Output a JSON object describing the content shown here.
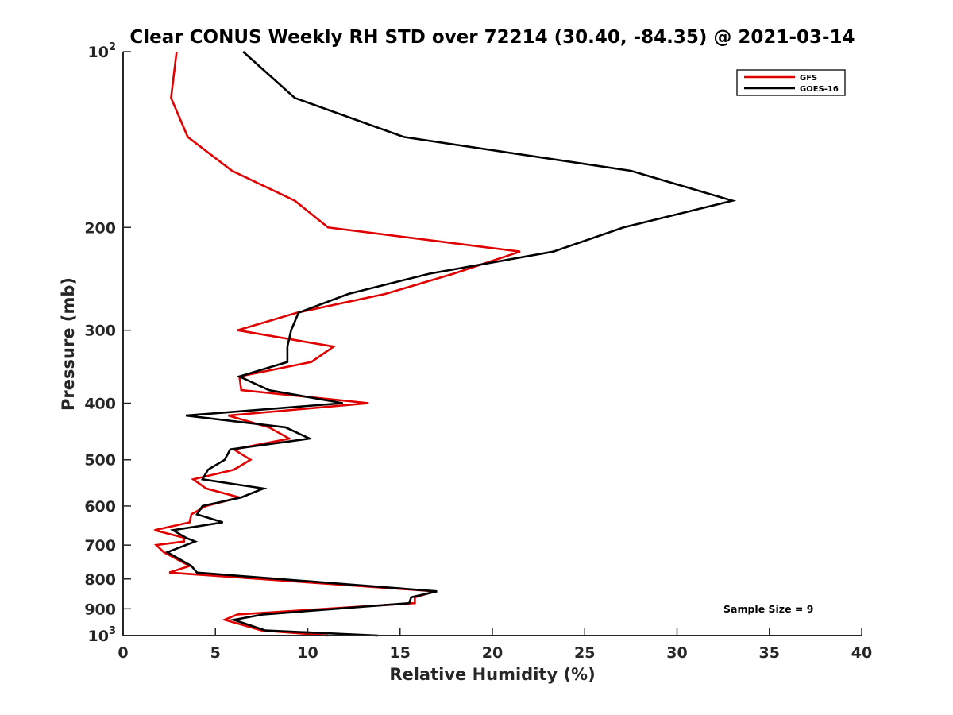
{
  "chart_data": {
    "type": "line",
    "title": "Clear CONUS Weekly RH STD over 72214 (30.40, -84.35) @ 2021-03-14",
    "xlabel": "Relative Humidity (%)",
    "ylabel": "Pressure (mb)",
    "xlim": [
      0,
      40
    ],
    "ylim": [
      100,
      1000
    ],
    "yscale": "log",
    "yreversed": true,
    "grid": false,
    "x_ticks": [
      0,
      5,
      10,
      15,
      20,
      25,
      30,
      35,
      40
    ],
    "x_tick_labels": [
      "0",
      "5",
      "10",
      "15",
      "20",
      "25",
      "30",
      "35",
      "40"
    ],
    "y_ticks": [
      100,
      200,
      300,
      400,
      500,
      600,
      700,
      800,
      900,
      1000
    ],
    "y_tick_labels": [
      {
        "base": "10",
        "exp": "2"
      },
      {
        "base": "200",
        "exp": ""
      },
      {
        "base": "300",
        "exp": ""
      },
      {
        "base": "400",
        "exp": ""
      },
      {
        "base": "500",
        "exp": ""
      },
      {
        "base": "600",
        "exp": ""
      },
      {
        "base": "700",
        "exp": ""
      },
      {
        "base": "800",
        "exp": ""
      },
      {
        "base": "900",
        "exp": ""
      },
      {
        "base": "10",
        "exp": "3"
      }
    ],
    "legend": {
      "position": "top-right",
      "entries": [
        "GFS",
        "GOES-16"
      ]
    },
    "annotations": [
      {
        "text": "Sample Size = 9",
        "position": "bottom-right"
      }
    ],
    "series": [
      {
        "name": "GFS",
        "color": "#e00000",
        "points": [
          [
            2.9,
            100
          ],
          [
            2.6,
            120
          ],
          [
            3.5,
            140
          ],
          [
            5.9,
            160
          ],
          [
            9.3,
            180
          ],
          [
            11.1,
            200
          ],
          [
            21.5,
            220
          ],
          [
            17.9,
            240
          ],
          [
            14.2,
            260
          ],
          [
            9.4,
            280
          ],
          [
            6.2,
            300
          ],
          [
            11.4,
            320
          ],
          [
            10.2,
            340
          ],
          [
            6.3,
            360
          ],
          [
            6.4,
            380
          ],
          [
            13.3,
            400
          ],
          [
            5.7,
            420
          ],
          [
            7.9,
            440
          ],
          [
            9.0,
            460
          ],
          [
            6.0,
            480
          ],
          [
            6.9,
            500
          ],
          [
            6.0,
            520
          ],
          [
            3.8,
            540
          ],
          [
            4.5,
            560
          ],
          [
            6.3,
            580
          ],
          [
            4.5,
            600
          ],
          [
            3.7,
            620
          ],
          [
            3.6,
            640
          ],
          [
            1.7,
            660
          ],
          [
            3.3,
            680
          ],
          [
            3.3,
            690
          ],
          [
            1.8,
            700
          ],
          [
            2.2,
            720
          ],
          [
            3.6,
            760
          ],
          [
            2.5,
            780
          ],
          [
            16.9,
            840
          ],
          [
            15.8,
            860
          ],
          [
            15.8,
            880
          ],
          [
            6.2,
            920
          ],
          [
            5.5,
            940
          ],
          [
            7.5,
            980
          ],
          [
            11.1,
            1000
          ]
        ]
      },
      {
        "name": "GOES-16",
        "color": "#000000",
        "points": [
          [
            6.5,
            100
          ],
          [
            9.3,
            120
          ],
          [
            15.2,
            140
          ],
          [
            27.5,
            160
          ],
          [
            33.0,
            180
          ],
          [
            27.1,
            200
          ],
          [
            23.3,
            220
          ],
          [
            16.6,
            240
          ],
          [
            12.2,
            260
          ],
          [
            9.5,
            280
          ],
          [
            9.1,
            300
          ],
          [
            8.9,
            320
          ],
          [
            8.9,
            340
          ],
          [
            6.3,
            360
          ],
          [
            7.9,
            380
          ],
          [
            11.9,
            400
          ],
          [
            3.4,
            420
          ],
          [
            8.8,
            440
          ],
          [
            10.1,
            460
          ],
          [
            5.8,
            480
          ],
          [
            5.5,
            500
          ],
          [
            4.6,
            520
          ],
          [
            4.3,
            540
          ],
          [
            7.6,
            560
          ],
          [
            6.4,
            580
          ],
          [
            4.3,
            600
          ],
          [
            4.0,
            620
          ],
          [
            5.4,
            640
          ],
          [
            2.7,
            660
          ],
          [
            3.4,
            680
          ],
          [
            3.9,
            690
          ],
          [
            2.4,
            720
          ],
          [
            3.7,
            760
          ],
          [
            4.0,
            780
          ],
          [
            17.0,
            840
          ],
          [
            15.6,
            860
          ],
          [
            15.5,
            880
          ],
          [
            7.6,
            920
          ],
          [
            6.0,
            940
          ],
          [
            7.7,
            980
          ],
          [
            13.8,
            1000
          ]
        ]
      }
    ]
  }
}
